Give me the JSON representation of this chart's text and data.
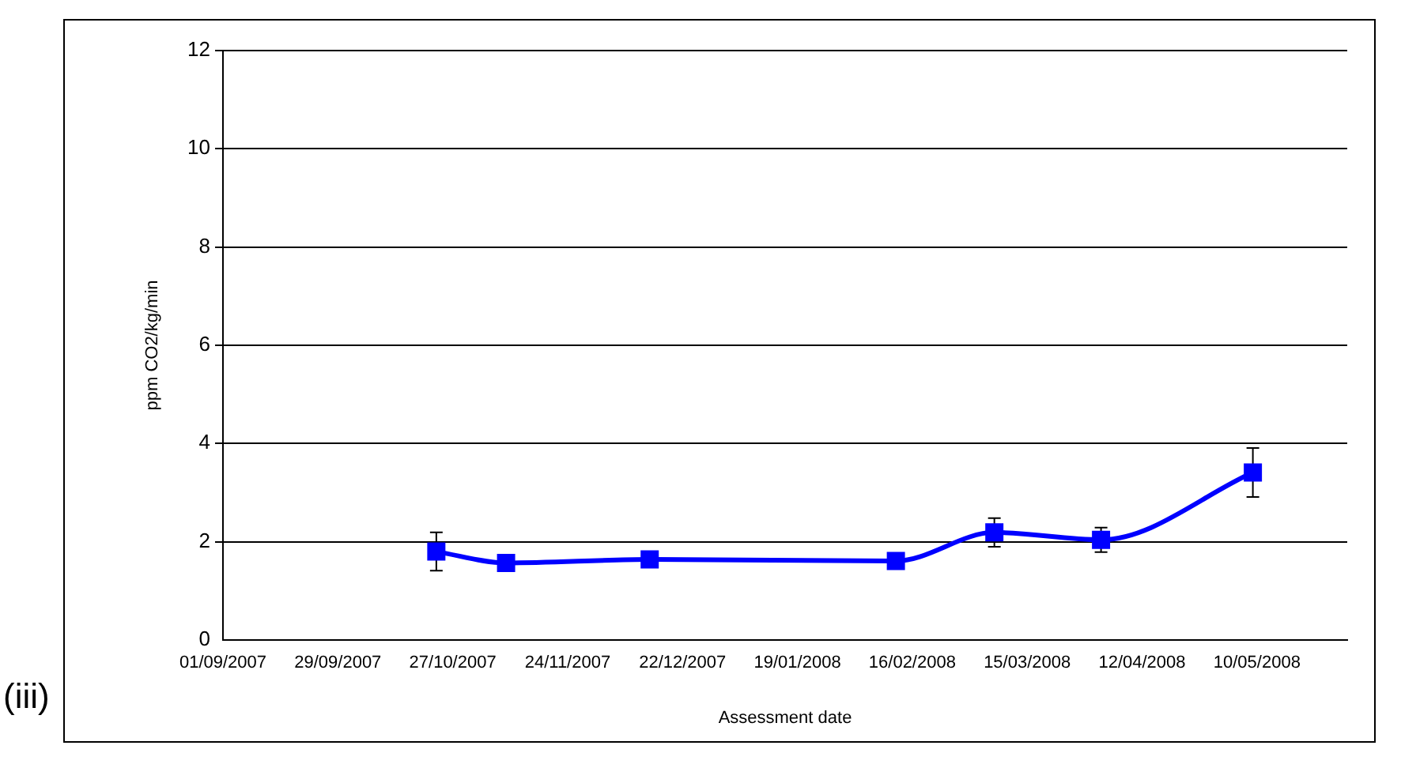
{
  "chart_data": {
    "type": "line",
    "xlabel": "Assessment date",
    "ylabel": "ppm CO2/kg/min",
    "annotations": [
      "(iii)"
    ],
    "x": [
      "2007-10-23",
      "2007-11-09",
      "2007-12-14",
      "2008-02-12",
      "2008-03-07",
      "2008-04-02",
      "2008-05-09"
    ],
    "series": [
      {
        "color": "#0000ff",
        "values": [
          1.8,
          1.57,
          1.64,
          1.61,
          2.19,
          2.04,
          3.41
        ],
        "errors": [
          0.39,
          null,
          null,
          null,
          0.29,
          0.25,
          0.5
        ]
      }
    ],
    "xlim": [
      "2007-09-01",
      "2008-06-01"
    ],
    "xticks": [
      {
        "value": "2007-09-01",
        "label": "01/09/2007"
      },
      {
        "value": "2007-09-29",
        "label": "29/09/2007"
      },
      {
        "value": "2007-10-27",
        "label": "27/10/2007"
      },
      {
        "value": "2007-11-24",
        "label": "24/11/2007"
      },
      {
        "value": "2007-12-22",
        "label": "22/12/2007"
      },
      {
        "value": "2008-01-19",
        "label": "19/01/2008"
      },
      {
        "value": "2008-02-16",
        "label": "16/02/2008"
      },
      {
        "value": "2008-03-15",
        "label": "15/03/2008"
      },
      {
        "value": "2008-04-12",
        "label": "12/04/2008"
      },
      {
        "value": "2008-05-10",
        "label": "10/05/2008"
      }
    ],
    "ylim": [
      0,
      12
    ],
    "yticks": [
      0,
      2,
      4,
      6,
      8,
      10,
      12
    ],
    "grid": "y",
    "legend": false,
    "marker": "square",
    "line_style": "solid"
  }
}
